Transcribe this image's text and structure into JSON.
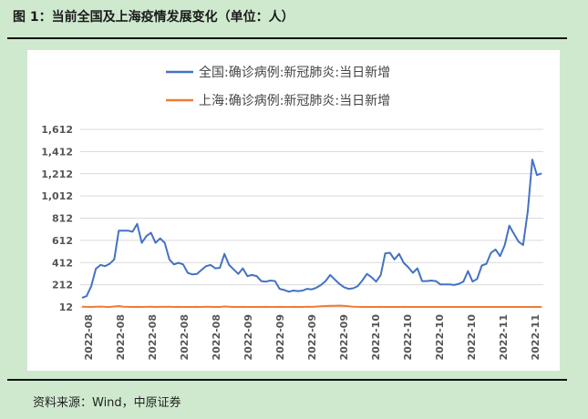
{
  "figure": {
    "title": "图 1：当前全国及上海疫情发展变化（单位：人）",
    "source": "资料来源：Wind，中原证券"
  },
  "colors": {
    "background": "#cfe9cf",
    "national": "#4472c4",
    "shanghai": "#ed7d31",
    "grid": "#d9d9d9"
  },
  "chart_data": {
    "type": "line",
    "title": "",
    "xlabel": "",
    "ylabel": "",
    "ylim": [
      12,
      1612
    ],
    "y_ticks": [
      12,
      212,
      412,
      612,
      812,
      1012,
      1212,
      1412,
      1612
    ],
    "y_tick_labels": [
      "12",
      "212",
      "412",
      "612",
      "812",
      "1,012",
      "1,212",
      "1,412",
      "1,612"
    ],
    "x_tick_labels": [
      "2022-08",
      "2022-08",
      "2022-08",
      "2022-08",
      "2022-08",
      "2022-09",
      "2022-09",
      "2022-09",
      "2022-09",
      "2022-10",
      "2022-10",
      "2022-10",
      "2022-10",
      "2022-11",
      "2022-11"
    ],
    "grid": true,
    "legend_position": "top",
    "series": [
      {
        "name": "全国:确诊病例:新冠肺炎:当日新增",
        "values": [
          95,
          110,
          200,
          355,
          390,
          380,
          400,
          440,
          700,
          700,
          700,
          690,
          760,
          590,
          650,
          680,
          590,
          630,
          590,
          440,
          395,
          410,
          395,
          320,
          305,
          310,
          345,
          380,
          390,
          360,
          365,
          490,
          390,
          350,
          310,
          360,
          290,
          300,
          290,
          245,
          240,
          250,
          245,
          175,
          165,
          150,
          160,
          155,
          160,
          175,
          170,
          185,
          210,
          245,
          300,
          260,
          220,
          190,
          175,
          180,
          200,
          250,
          310,
          280,
          240,
          300,
          495,
          500,
          440,
          490,
          410,
          370,
          320,
          360,
          245,
          245,
          250,
          245,
          215,
          215,
          215,
          210,
          220,
          240,
          335,
          240,
          265,
          385,
          400,
          500,
          530,
          470,
          570,
          745,
          670,
          600,
          570,
          870,
          1340,
          1200,
          1215
        ]
      },
      {
        "name": "上海:确诊病例:新冠肺炎:当日新增",
        "values": [
          14,
          13,
          12,
          14,
          15,
          13,
          12,
          16,
          20,
          14,
          13,
          12,
          13,
          12,
          13,
          14,
          12,
          13,
          13,
          14,
          12,
          13,
          12,
          12,
          12,
          13,
          12,
          14,
          13,
          12,
          12,
          16,
          14,
          12,
          12,
          13,
          12,
          12,
          12,
          12,
          13,
          12,
          12,
          13,
          12,
          12,
          13,
          12,
          12,
          14,
          13,
          15,
          18,
          20,
          22,
          22,
          24,
          22,
          18,
          14,
          13,
          12,
          12,
          12,
          12,
          13,
          12,
          12,
          12,
          12,
          13,
          12,
          12,
          12,
          12,
          12,
          12,
          12,
          12,
          12,
          12,
          12,
          12,
          12,
          12,
          12,
          12,
          12,
          12,
          12,
          12,
          12,
          12,
          12,
          12,
          12,
          12,
          12,
          12,
          12,
          12
        ]
      }
    ]
  }
}
